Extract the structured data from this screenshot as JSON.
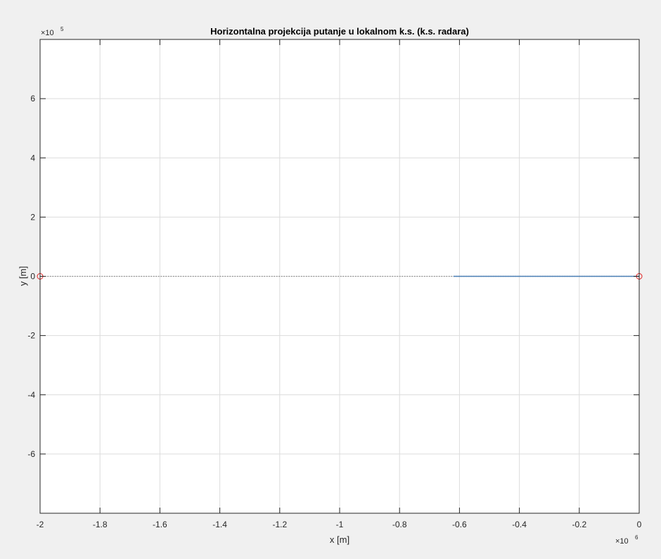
{
  "chart_data": {
    "type": "line",
    "title": "Horizontalna projekcija putanje u lokalnom k.s. (k.s. radara)",
    "xlabel": "x [m]",
    "ylabel": "y [m]",
    "x_exponent_label": "×10",
    "x_exponent_power": "6",
    "y_exponent_label": "×10",
    "y_exponent_power": "5",
    "xlim": [
      -2,
      0
    ],
    "ylim": [
      -8,
      8
    ],
    "x_unit_scale": 1000000,
    "y_unit_scale": 100000,
    "xticks": [
      -2,
      -1.8,
      -1.6,
      -1.4,
      -1.2,
      -1,
      -0.8,
      -0.6,
      -0.4,
      -0.2,
      0
    ],
    "xtick_labels": [
      "-2",
      "-1.8",
      "-1.6",
      "-1.4",
      "-1.2",
      "-1",
      "-0.8",
      "-0.6",
      "-0.4",
      "-0.2",
      "0"
    ],
    "yticks": [
      -6,
      -4,
      -2,
      0,
      2,
      4,
      6
    ],
    "ytick_labels": [
      "-6",
      "-4",
      "-2",
      "0",
      "2",
      "4",
      "6"
    ],
    "grid": true,
    "series": [
      {
        "style": "dotted",
        "color": "#888888",
        "x": [
          -2,
          0
        ],
        "y": [
          0,
          0
        ]
      },
      {
        "style": "solid",
        "color": "#4a7fb5",
        "x": [
          -0.62,
          0
        ],
        "y": [
          0,
          0
        ]
      }
    ],
    "markers": [
      {
        "shape": "circle",
        "color": "#e02020",
        "x": -2,
        "y": 0
      },
      {
        "shape": "circle",
        "color": "#e02020",
        "x": 0,
        "y": 0
      }
    ]
  }
}
